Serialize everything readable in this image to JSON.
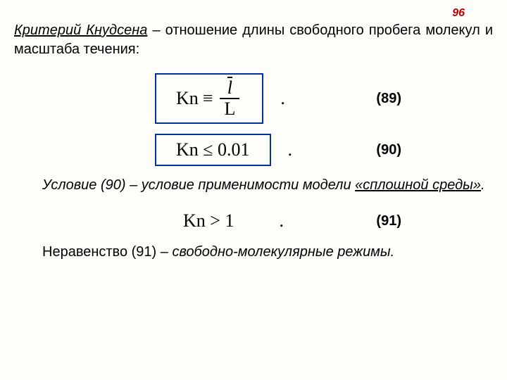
{
  "page_number": "96",
  "para1": {
    "term": "Критерий Кнудсена",
    "rest": " – отношение длины свободного пробега молекул и масштаба течения:"
  },
  "eq89": {
    "lhs": "Kn",
    "op": "≡",
    "num": "l",
    "den": "L",
    "label": "(89)"
  },
  "eq90": {
    "text": "Kn ≤ 0.01",
    "label": "(90)"
  },
  "para2": {
    "pre": "Условие (90) – условие применимости модели ",
    "u": "«сплошной среды»",
    "post": "."
  },
  "eq91": {
    "text": "Kn > 1",
    "label": "(91)"
  },
  "para3": {
    "pre": "Неравенство (91) – ",
    "ital": "свободно-молекулярные режимы."
  },
  "colors": {
    "box_border": "#003399",
    "pagenum": "#c00000",
    "bg": "#fdfdf9"
  }
}
